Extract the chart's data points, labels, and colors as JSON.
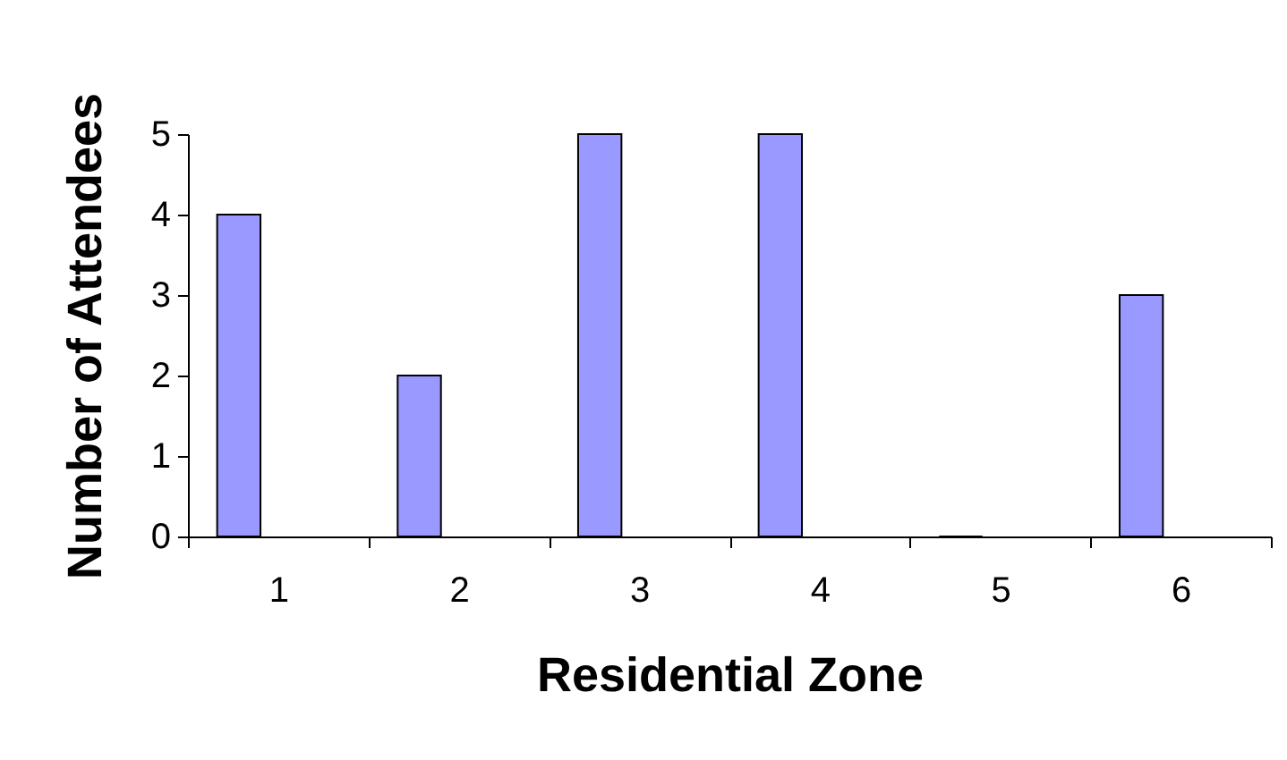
{
  "chart_data": {
    "type": "bar",
    "xlabel": "Residential Zone",
    "ylabel": "Number of Attendees",
    "categories": [
      "1",
      "2",
      "3",
      "4",
      "5",
      "6"
    ],
    "values": [
      4,
      2,
      5,
      5,
      0,
      3
    ],
    "color": "#9999ff",
    "ylim": [
      0,
      5
    ],
    "yticks": [
      0,
      1,
      2,
      3,
      4,
      5
    ],
    "grid": false
  }
}
